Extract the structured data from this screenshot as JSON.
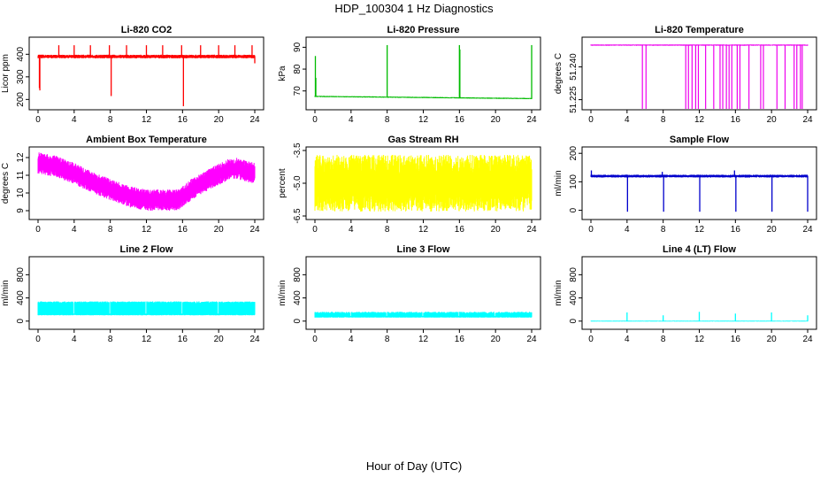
{
  "figure": {
    "title": "HDP_100304  1 Hz Diagnostics",
    "xlabel": "Hour of Day (UTC)"
  },
  "chart_data": [
    {
      "type": "line",
      "title": "Li-820 CO2",
      "ylabel": "Licor ppm",
      "color": "#ff0000",
      "xlim": [
        0,
        24
      ],
      "xticks": [
        0,
        4,
        8,
        12,
        16,
        20,
        24
      ],
      "ylim": [
        170,
        460
      ],
      "yticks": [
        200,
        300,
        400
      ],
      "baseline": 390,
      "noise": 8,
      "spikes": [
        {
          "x": 0.15,
          "y": 250
        },
        {
          "x": 0.2,
          "y": 240
        },
        {
          "x": 2.3,
          "y": 440
        },
        {
          "x": 4.0,
          "y": 440
        },
        {
          "x": 5.8,
          "y": 440
        },
        {
          "x": 7.9,
          "y": 440
        },
        {
          "x": 8.1,
          "y": 215
        },
        {
          "x": 9.8,
          "y": 440
        },
        {
          "x": 12.0,
          "y": 440
        },
        {
          "x": 13.8,
          "y": 440
        },
        {
          "x": 15.9,
          "y": 440
        },
        {
          "x": 16.1,
          "y": 170
        },
        {
          "x": 18.0,
          "y": 440
        },
        {
          "x": 20.0,
          "y": 440
        },
        {
          "x": 21.8,
          "y": 440
        },
        {
          "x": 23.7,
          "y": 440
        },
        {
          "x": 24.0,
          "y": 360
        }
      ]
    },
    {
      "type": "line",
      "title": "Li-820 Pressure",
      "ylabel": "kPa",
      "color": "#00bb00",
      "xlim": [
        0,
        24
      ],
      "xticks": [
        0,
        4,
        8,
        12,
        16,
        20,
        24
      ],
      "ylim": [
        63,
        93
      ],
      "yticks": [
        70,
        80,
        90
      ],
      "baseline_start": 67.5,
      "baseline_end": 66.5,
      "noise": 0.3,
      "spikes": [
        {
          "x": 0.05,
          "y": 86
        },
        {
          "x": 0.1,
          "y": 76
        },
        {
          "x": 8.0,
          "y": 91
        },
        {
          "x": 16.0,
          "y": 91
        },
        {
          "x": 16.05,
          "y": 89
        },
        {
          "x": 24.0,
          "y": 91
        }
      ]
    },
    {
      "type": "line",
      "title": "Li-820 Temperature",
      "ylabel": "degrees C",
      "color": "#ee00ee",
      "xlim": [
        0,
        24
      ],
      "xticks": [
        0,
        4,
        8,
        12,
        16,
        20,
        24
      ],
      "ylim": [
        51.222,
        51.252
      ],
      "yticks": [
        51.225,
        51.24
      ],
      "ytick_labels": [
        "51.225",
        "51.240"
      ],
      "baseline": 51.25,
      "noise": 0.0003,
      "drops": [
        5.7,
        6.1,
        10.5,
        10.8,
        11.2,
        11.6,
        11.9,
        12.7,
        13.6,
        14.3,
        14.6,
        15.0,
        15.3,
        15.6,
        16.2,
        16.5,
        17.5,
        18.8,
        19.1,
        20.6,
        21.5,
        22.5,
        22.8,
        23.2,
        23.4
      ]
    },
    {
      "type": "line",
      "title": "Ambient Box Temperature",
      "ylabel": "degrees C",
      "color": "#ff00ff",
      "xlim": [
        0,
        24
      ],
      "xticks": [
        0,
        4,
        8,
        12,
        16,
        20,
        24
      ],
      "ylim": [
        8.7,
        12.4
      ],
      "yticks": [
        9,
        10,
        11,
        12
      ],
      "trend": [
        [
          0,
          11.7
        ],
        [
          2,
          11.5
        ],
        [
          4,
          11.1
        ],
        [
          6,
          10.6
        ],
        [
          8,
          10.2
        ],
        [
          10,
          9.8
        ],
        [
          12,
          9.6
        ],
        [
          14,
          9.6
        ],
        [
          15.5,
          9.6
        ],
        [
          17,
          10.2
        ],
        [
          19,
          10.8
        ],
        [
          21,
          11.3
        ],
        [
          22,
          11.4
        ],
        [
          24,
          11.1
        ]
      ],
      "noise": 0.6
    },
    {
      "type": "line",
      "title": "Gas Stream RH",
      "ylabel": "percent",
      "color": "#ffff00",
      "xlim": [
        0,
        24
      ],
      "xticks": [
        0,
        4,
        8,
        12,
        16,
        20,
        24
      ],
      "ylim": [
        -6.5,
        -3.5
      ],
      "yticks": [
        -6.5,
        -5.0,
        -3.5
      ],
      "ytick_labels": [
        "-6.5",
        "-5.0",
        "-3.5"
      ],
      "baseline": -5.0,
      "noise": 1.3
    },
    {
      "type": "line",
      "title": "Sample Flow",
      "ylabel": "ml/min",
      "color": "#0000cc",
      "xlim": [
        0,
        24
      ],
      "xticks": [
        0,
        4,
        8,
        12,
        16,
        20,
        24
      ],
      "ylim": [
        -20,
        210
      ],
      "yticks": [
        0,
        100,
        200
      ],
      "baseline": 120,
      "noise": 5,
      "spikes": [
        {
          "x": 0.05,
          "y": 140
        },
        {
          "x": 3.9,
          "y": 125
        },
        {
          "x": 4.05,
          "y": -5
        },
        {
          "x": 7.9,
          "y": 135
        },
        {
          "x": 8.05,
          "y": -5
        },
        {
          "x": 11.9,
          "y": 125
        },
        {
          "x": 12.05,
          "y": -5
        },
        {
          "x": 15.9,
          "y": 140
        },
        {
          "x": 16.05,
          "y": -5
        },
        {
          "x": 19.9,
          "y": 125
        },
        {
          "x": 20.05,
          "y": -5
        },
        {
          "x": 24.0,
          "y": -5
        }
      ]
    },
    {
      "type": "line",
      "title": "Line 2 Flow",
      "ylabel": "ml/min",
      "color": "#00ffff",
      "xlim": [
        0,
        24
      ],
      "xticks": [
        0,
        4,
        8,
        12,
        16,
        20,
        24
      ],
      "ylim": [
        -80,
        1050
      ],
      "yticks": [
        0,
        400,
        800
      ],
      "band_low": 110,
      "band_high": 340,
      "gaps": [
        3.95,
        7.95,
        11.95,
        15.95,
        19.95
      ]
    },
    {
      "type": "line",
      "title": "Line 3 Flow",
      "ylabel": "ml/min",
      "color": "#00ffff",
      "xlim": [
        0,
        24
      ],
      "xticks": [
        0,
        4,
        8,
        12,
        16,
        20,
        24
      ],
      "ylim": [
        -80,
        1050
      ],
      "yticks": [
        0,
        400,
        800
      ],
      "band_low": 70,
      "band_high": 160,
      "gaps": [
        3.95,
        7.95,
        11.95,
        15.95,
        19.95
      ]
    },
    {
      "type": "line",
      "title": "Line 4 (LT) Flow",
      "ylabel": "ml/min",
      "color": "#00ffff",
      "xlim": [
        0,
        24
      ],
      "xticks": [
        0,
        4,
        8,
        12,
        16,
        20,
        24
      ],
      "ylim": [
        -80,
        1050
      ],
      "yticks": [
        0,
        400,
        800
      ],
      "baseline": 0,
      "noise": 8,
      "spikes": [
        {
          "x": 4.0,
          "y": 150
        },
        {
          "x": 8.0,
          "y": 100
        },
        {
          "x": 12.0,
          "y": 160
        },
        {
          "x": 16.0,
          "y": 130
        },
        {
          "x": 20.0,
          "y": 150
        },
        {
          "x": 24.0,
          "y": 100
        }
      ]
    }
  ]
}
